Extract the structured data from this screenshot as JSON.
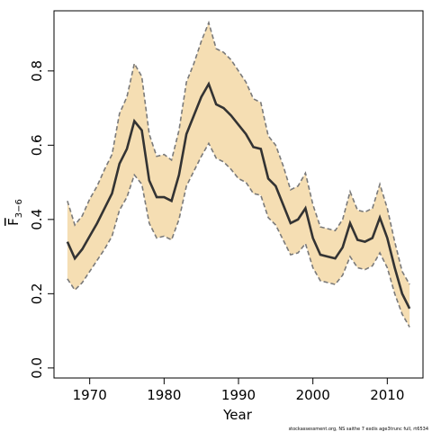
{
  "chart_data": {
    "type": "line",
    "xlabel": "Year",
    "ylabel": {
      "main": "F",
      "sub": "3−6"
    },
    "footnote": "stockassessment.org, NS saithe 7 exdis age3trunc full, rt6534",
    "x": [
      1967,
      1968,
      1969,
      1970,
      1971,
      1972,
      1973,
      1974,
      1975,
      1976,
      1977,
      1978,
      1979,
      1980,
      1981,
      1982,
      1983,
      1984,
      1985,
      1986,
      1987,
      1988,
      1989,
      1990,
      1991,
      1992,
      1993,
      1994,
      1995,
      1996,
      1997,
      1998,
      1999,
      2000,
      2001,
      2002,
      2003,
      2004,
      2005,
      2006,
      2007,
      2008,
      2009,
      2010,
      2011,
      2012,
      2013
    ],
    "values": [
      0.34,
      0.295,
      0.32,
      0.355,
      0.39,
      0.43,
      0.47,
      0.55,
      0.59,
      0.665,
      0.64,
      0.505,
      0.46,
      0.46,
      0.45,
      0.52,
      0.63,
      0.68,
      0.73,
      0.765,
      0.71,
      0.7,
      0.68,
      0.655,
      0.63,
      0.595,
      0.59,
      0.51,
      0.49,
      0.44,
      0.39,
      0.4,
      0.43,
      0.35,
      0.305,
      0.3,
      0.295,
      0.325,
      0.39,
      0.345,
      0.34,
      0.35,
      0.405,
      0.35,
      0.27,
      0.2,
      0.16
    ],
    "upper": [
      0.45,
      0.385,
      0.41,
      0.455,
      0.49,
      0.535,
      0.575,
      0.685,
      0.73,
      0.82,
      0.785,
      0.63,
      0.57,
      0.575,
      0.56,
      0.64,
      0.77,
      0.82,
      0.88,
      0.93,
      0.86,
      0.85,
      0.83,
      0.8,
      0.77,
      0.725,
      0.715,
      0.625,
      0.6,
      0.545,
      0.48,
      0.49,
      0.525,
      0.44,
      0.38,
      0.375,
      0.37,
      0.4,
      0.475,
      0.425,
      0.42,
      0.43,
      0.495,
      0.43,
      0.34,
      0.26,
      0.225
    ],
    "lower": [
      0.24,
      0.21,
      0.23,
      0.26,
      0.29,
      0.32,
      0.355,
      0.425,
      0.46,
      0.52,
      0.495,
      0.39,
      0.35,
      0.355,
      0.345,
      0.4,
      0.49,
      0.53,
      0.57,
      0.605,
      0.565,
      0.555,
      0.535,
      0.51,
      0.5,
      0.47,
      0.465,
      0.405,
      0.385,
      0.345,
      0.305,
      0.31,
      0.335,
      0.27,
      0.235,
      0.23,
      0.225,
      0.25,
      0.3,
      0.27,
      0.265,
      0.275,
      0.31,
      0.27,
      0.2,
      0.145,
      0.11
    ],
    "color": "#333333",
    "band_color": "#f5deb3",
    "band_edge_color": "#7a7a7a",
    "xlim": [
      1965.2,
      2014.8
    ],
    "xticks": [
      1970,
      1980,
      1990,
      2000,
      2010
    ],
    "ylim": [
      -0.027,
      0.962
    ],
    "yticks": [
      {
        "value": 0,
        "label": "0.0"
      },
      0.2,
      0.4,
      0.6,
      0.8
    ]
  }
}
